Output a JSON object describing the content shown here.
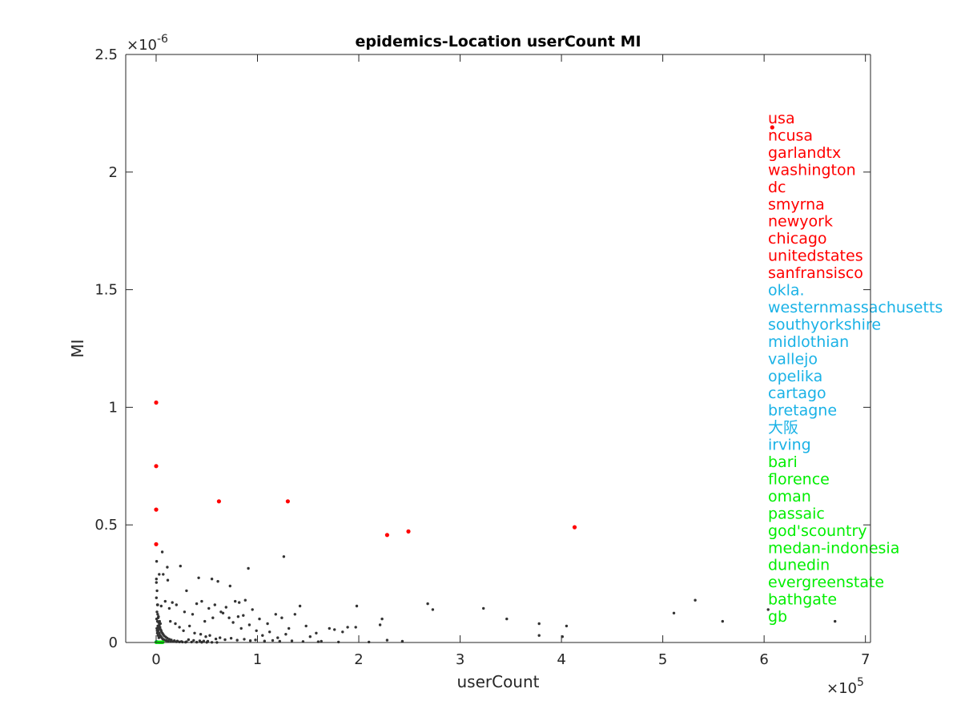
{
  "chart_data": {
    "type": "scatter",
    "title": "epidemics-Location userCount MI",
    "xlabel": "userCount",
    "ylabel": "MI",
    "x_exponent_label": "×10",
    "x_exponent": "5",
    "y_exponent_label": "×10",
    "y_exponent": "-6",
    "xlim": [
      -30000,
      705000
    ],
    "ylim": [
      0,
      2.5e-06
    ],
    "x_ticks": [
      0,
      100000,
      200000,
      300000,
      400000,
      500000,
      600000,
      700000
    ],
    "x_tick_labels": [
      "0",
      "1",
      "2",
      "3",
      "4",
      "5",
      "6",
      "7"
    ],
    "y_ticks": [
      0,
      5e-07,
      1e-06,
      1.5e-06,
      2e-06,
      2.5e-06
    ],
    "y_tick_labels": [
      "0",
      "0.5",
      "1",
      "1.5",
      "2",
      "2.5"
    ],
    "grid": false,
    "colors": {
      "top": "#ff0000",
      "middle": "#1ab2e6",
      "bottom": "#00ee00",
      "other": "#333333",
      "axis": "#262626"
    },
    "series": [
      {
        "color": "#333333",
        "points": [
          [
            270,
            2.7e-07
          ],
          [
            240,
            2.55e-07
          ],
          [
            520,
            3.45e-07
          ],
          [
            300,
            1.9e-07
          ],
          [
            900,
            2.2e-07
          ],
          [
            1200,
            1.6e-07
          ],
          [
            1600,
            1.6e-07
          ],
          [
            2000,
            1.05e-07
          ],
          [
            2500,
            8.5e-08
          ],
          [
            3100,
            7.5e-08
          ],
          [
            3800,
            6.5e-08
          ],
          [
            4500,
            5.5e-08
          ],
          [
            5200,
            4.8e-08
          ],
          [
            6100,
            4e-08
          ],
          [
            7000,
            3.4e-08
          ],
          [
            8000,
            2.8e-08
          ],
          [
            9500,
            2.3e-08
          ],
          [
            11000,
            1.8e-08
          ],
          [
            13000,
            1.4e-08
          ],
          [
            15000,
            1.1e-08
          ],
          [
            18000,
            8e-09
          ],
          [
            21000,
            6e-09
          ],
          [
            25000,
            4e-09
          ],
          [
            30000,
            3e-09
          ],
          [
            35000,
            2e-09
          ],
          [
            40000,
            1.5e-09
          ],
          [
            45000,
            1e-09
          ],
          [
            50000,
            8e-10
          ],
          [
            55000,
            6e-10
          ],
          [
            60000,
            5e-10
          ],
          [
            800,
            1.3e-07
          ],
          [
            1500,
            1.2e-07
          ],
          [
            2300,
            1.1e-07
          ],
          [
            3400,
            9e-08
          ],
          [
            4200,
            8e-08
          ],
          [
            500,
            1e-07
          ],
          [
            700,
            6e-08
          ],
          [
            1100,
            4e-08
          ],
          [
            1900,
            3e-08
          ],
          [
            2700,
            2e-08
          ],
          [
            6000,
            3.85e-07
          ],
          [
            7000,
            2.9e-07
          ],
          [
            3000,
            2.9e-07
          ],
          [
            11000,
            3.2e-07
          ],
          [
            24000,
            3.25e-07
          ],
          [
            11500,
            2.65e-07
          ],
          [
            42000,
            2.75e-07
          ],
          [
            30000,
            2.2e-07
          ],
          [
            55000,
            2.7e-07
          ],
          [
            61000,
            2.6e-07
          ],
          [
            91000,
            3.15e-07
          ],
          [
            126000,
            3.65e-07
          ],
          [
            73000,
            2.4e-07
          ],
          [
            78000,
            1.75e-07
          ],
          [
            82000,
            1.7e-07
          ],
          [
            69000,
            1.5e-07
          ],
          [
            64000,
            1.3e-07
          ],
          [
            56000,
            1.05e-07
          ],
          [
            48000,
            9e-08
          ],
          [
            36000,
            1.2e-07
          ],
          [
            28000,
            1.3e-07
          ],
          [
            20000,
            1.6e-07
          ],
          [
            16000,
            1.7e-07
          ],
          [
            9000,
            1.75e-07
          ],
          [
            13000,
            1.45e-07
          ],
          [
            5000,
            1.55e-07
          ],
          [
            88000,
            1.8e-07
          ],
          [
            95000,
            1.4e-07
          ],
          [
            86000,
            1.15e-07
          ],
          [
            102000,
            1e-07
          ],
          [
            110000,
            8e-08
          ],
          [
            118000,
            1.2e-07
          ],
          [
            124000,
            1.05e-07
          ],
          [
            131000,
            6e-08
          ],
          [
            137000,
            1.2e-07
          ],
          [
            142000,
            1.55e-07
          ],
          [
            148000,
            7e-08
          ],
          [
            152000,
            2.5e-08
          ],
          [
            158000,
            4e-08
          ],
          [
            163000,
            5e-09
          ],
          [
            171000,
            6e-08
          ],
          [
            176000,
            5.5e-08
          ],
          [
            184000,
            4.5e-08
          ],
          [
            189000,
            6.5e-08
          ],
          [
            197000,
            6.5e-08
          ],
          [
            198000,
            1.55e-07
          ],
          [
            221000,
            7.5e-08
          ],
          [
            223000,
            1e-07
          ],
          [
            228000,
            1e-08
          ],
          [
            243000,
            5e-09
          ],
          [
            268000,
            1.65e-07
          ],
          [
            273000,
            1.4e-07
          ],
          [
            323000,
            1.45e-07
          ],
          [
            346000,
            1e-07
          ],
          [
            378000,
            8e-08
          ],
          [
            378000,
            3e-08
          ],
          [
            401000,
            2.5e-08
          ],
          [
            405000,
            7e-08
          ],
          [
            511000,
            1.25e-07
          ],
          [
            532000,
            1.8e-07
          ],
          [
            559000,
            9e-08
          ],
          [
            604000,
            1.4e-07
          ],
          [
            670000,
            9e-08
          ],
          [
            40000,
            1.65e-07
          ],
          [
            45000,
            1.75e-07
          ],
          [
            52000,
            1.45e-07
          ],
          [
            58000,
            1.6e-07
          ],
          [
            66000,
            1.25e-07
          ],
          [
            72000,
            1.05e-07
          ],
          [
            76000,
            8.5e-08
          ],
          [
            81000,
            1.1e-07
          ],
          [
            84000,
            6e-08
          ],
          [
            92000,
            7.5e-08
          ],
          [
            99000,
            5e-08
          ],
          [
            105000,
            3e-08
          ],
          [
            112000,
            4.5e-08
          ],
          [
            120000,
            2e-08
          ],
          [
            128000,
            3.5e-08
          ],
          [
            14000,
            9e-08
          ],
          [
            19000,
            8e-08
          ],
          [
            23000,
            6.5e-08
          ],
          [
            27000,
            5e-08
          ],
          [
            33000,
            7e-08
          ],
          [
            38000,
            4e-08
          ],
          [
            44000,
            3.5e-08
          ],
          [
            49000,
            2.5e-08
          ],
          [
            53000,
            3e-08
          ],
          [
            59000,
            1.5e-08
          ],
          [
            63000,
            2e-08
          ],
          [
            68000,
            1.2e-08
          ],
          [
            74000,
            1.8e-08
          ],
          [
            80000,
            1e-08
          ],
          [
            87000,
            1.4e-08
          ],
          [
            93000,
            8e-09
          ],
          [
            98000,
            1.1e-08
          ],
          [
            107000,
            6e-09
          ],
          [
            115000,
            9e-09
          ],
          [
            122000,
            5e-09
          ],
          [
            134000,
            7e-09
          ],
          [
            145000,
            4e-09
          ],
          [
            160000,
            3e-09
          ],
          [
            180000,
            2e-09
          ],
          [
            210000,
            2e-09
          ],
          [
            1000,
            5e-08
          ],
          [
            1300,
            9e-08
          ],
          [
            1700,
            7e-08
          ],
          [
            2100,
            5e-08
          ],
          [
            2600,
            6e-08
          ],
          [
            3300,
            4e-08
          ],
          [
            4000,
            3e-08
          ],
          [
            4800,
            2.5e-08
          ],
          [
            5600,
            2e-08
          ],
          [
            6500,
            1.5e-08
          ],
          [
            7500,
            1.2e-08
          ],
          [
            8600,
            1e-08
          ],
          [
            10000,
            8e-09
          ],
          [
            12000,
            6e-09
          ],
          [
            14500,
            5e-09
          ],
          [
            17000,
            4e-09
          ],
          [
            20000,
            3e-09
          ],
          [
            23000,
            2.5e-09
          ],
          [
            26000,
            2e-09
          ],
          [
            29000,
            1.5e-09
          ],
          [
            32000,
            1.2e-08
          ],
          [
            37000,
            9e-09
          ],
          [
            43000,
            7e-09
          ],
          [
            47000,
            6e-09
          ],
          [
            51000,
            5e-09
          ]
        ]
      },
      {
        "color": "#ff0000",
        "points": [
          [
            608000,
            2.19e-06
          ],
          [
            0,
            1.02e-06
          ],
          [
            0,
            7.5e-07
          ],
          [
            62000,
            6e-07
          ],
          [
            130000,
            6e-07
          ],
          [
            0,
            5.65e-07
          ],
          [
            413000,
            4.9e-07
          ],
          [
            249000,
            4.72e-07
          ],
          [
            228000,
            4.57e-07
          ],
          [
            0,
            4.18e-07
          ]
        ]
      },
      {
        "color": "#1ab2e6",
        "points": [
          [
            0,
            2e-09
          ],
          [
            100,
            2e-09
          ],
          [
            200,
            2e-09
          ],
          [
            300,
            2e-09
          ],
          [
            400,
            2e-09
          ],
          [
            500,
            2e-09
          ],
          [
            600,
            2e-09
          ],
          [
            700,
            2e-09
          ],
          [
            800,
            2e-09
          ],
          [
            900,
            2e-09
          ]
        ]
      },
      {
        "color": "#00ee00",
        "points": [
          [
            0,
            1e-09
          ],
          [
            1200,
            1e-09
          ],
          [
            2400,
            1e-09
          ],
          [
            3000,
            1e-09
          ],
          [
            3600,
            1e-09
          ],
          [
            4200,
            1e-09
          ],
          [
            4800,
            1e-09
          ],
          [
            5400,
            1e-09
          ],
          [
            6000,
            1e-09
          ],
          [
            6600,
            1e-09
          ]
        ]
      }
    ],
    "annotations": [
      {
        "text": "usa",
        "color": "#ff0000"
      },
      {
        "text": "ncusa",
        "color": "#ff0000"
      },
      {
        "text": "garlandtx",
        "color": "#ff0000"
      },
      {
        "text": "washington",
        "color": "#ff0000"
      },
      {
        "text": "dc",
        "color": "#ff0000"
      },
      {
        "text": "smyrna",
        "color": "#ff0000"
      },
      {
        "text": "newyork",
        "color": "#ff0000"
      },
      {
        "text": "chicago",
        "color": "#ff0000"
      },
      {
        "text": "unitedstates",
        "color": "#ff0000"
      },
      {
        "text": "sanfransisco",
        "color": "#ff0000"
      },
      {
        "text": "okla.",
        "color": "#1ab2e6"
      },
      {
        "text": "westernmassachusetts",
        "color": "#1ab2e6"
      },
      {
        "text": "southyorkshire",
        "color": "#1ab2e6"
      },
      {
        "text": "midlothian",
        "color": "#1ab2e6"
      },
      {
        "text": "vallejo",
        "color": "#1ab2e6"
      },
      {
        "text": "opelika",
        "color": "#1ab2e6"
      },
      {
        "text": "cartago",
        "color": "#1ab2e6"
      },
      {
        "text": "bretagne",
        "color": "#1ab2e6"
      },
      {
        "text": "大阪",
        "color": "#1ab2e6"
      },
      {
        "text": "irving",
        "color": "#1ab2e6"
      },
      {
        "text": "bari",
        "color": "#00ee00"
      },
      {
        "text": "florence",
        "color": "#00ee00"
      },
      {
        "text": "oman",
        "color": "#00ee00"
      },
      {
        "text": "passaic",
        "color": "#00ee00"
      },
      {
        "text": "god'scountry",
        "color": "#00ee00"
      },
      {
        "text": "medan-indonesia",
        "color": "#00ee00"
      },
      {
        "text": "dunedin",
        "color": "#00ee00"
      },
      {
        "text": "evergreenstate",
        "color": "#00ee00"
      },
      {
        "text": "bathgate",
        "color": "#00ee00"
      },
      {
        "text": "gb",
        "color": "#00ee00"
      }
    ]
  }
}
